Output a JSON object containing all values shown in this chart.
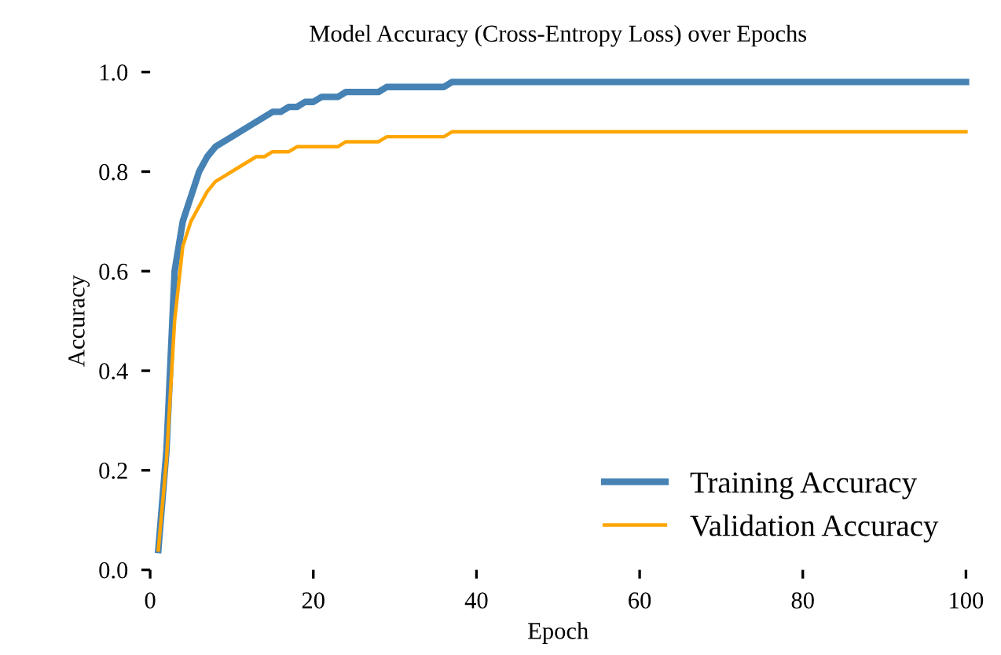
{
  "chart_data": {
    "type": "line",
    "title": "Model Accuracy (Cross-Entropy Loss) over Epochs",
    "xlabel": "Epoch",
    "ylabel": "Accuracy",
    "series": [
      {
        "name": "Training Accuracy",
        "color": "#4682b4",
        "x": [
          1,
          2,
          3,
          4,
          5,
          6,
          7,
          8,
          9,
          15,
          16,
          17,
          18,
          19,
          20,
          21,
          23,
          24,
          28,
          29,
          36,
          37,
          100
        ],
        "values": [
          0.04,
          0.24,
          0.6,
          0.7,
          0.75,
          0.8,
          0.83,
          0.85,
          0.86,
          0.92,
          0.92,
          0.93,
          0.93,
          0.94,
          0.94,
          0.95,
          0.95,
          0.96,
          0.96,
          0.97,
          0.97,
          0.98,
          0.98
        ]
      },
      {
        "name": "Validation Accuracy",
        "color": "#ffa500",
        "x": [
          1,
          2,
          3,
          4,
          5,
          6,
          7,
          8,
          9,
          10,
          13,
          14,
          15,
          17,
          18,
          23,
          24,
          28,
          29,
          36,
          37,
          100
        ],
        "values": [
          0.04,
          0.22,
          0.5,
          0.65,
          0.7,
          0.73,
          0.76,
          0.78,
          0.79,
          0.8,
          0.83,
          0.83,
          0.84,
          0.84,
          0.85,
          0.85,
          0.86,
          0.86,
          0.87,
          0.87,
          0.88,
          0.88
        ]
      }
    ],
    "xlim": [
      0,
      100
    ],
    "ylim": [
      0,
      1.0
    ],
    "xticks": [
      0,
      20,
      40,
      60,
      80,
      100
    ],
    "yticks": [
      {
        "value": 0,
        "label": "0.0"
      },
      0.2,
      0.4,
      0.6,
      0.8,
      {
        "value": 1,
        "label": "1.0"
      }
    ],
    "legend": "bottom right",
    "grid": false,
    "marker": "none",
    "line_style": "solid"
  }
}
